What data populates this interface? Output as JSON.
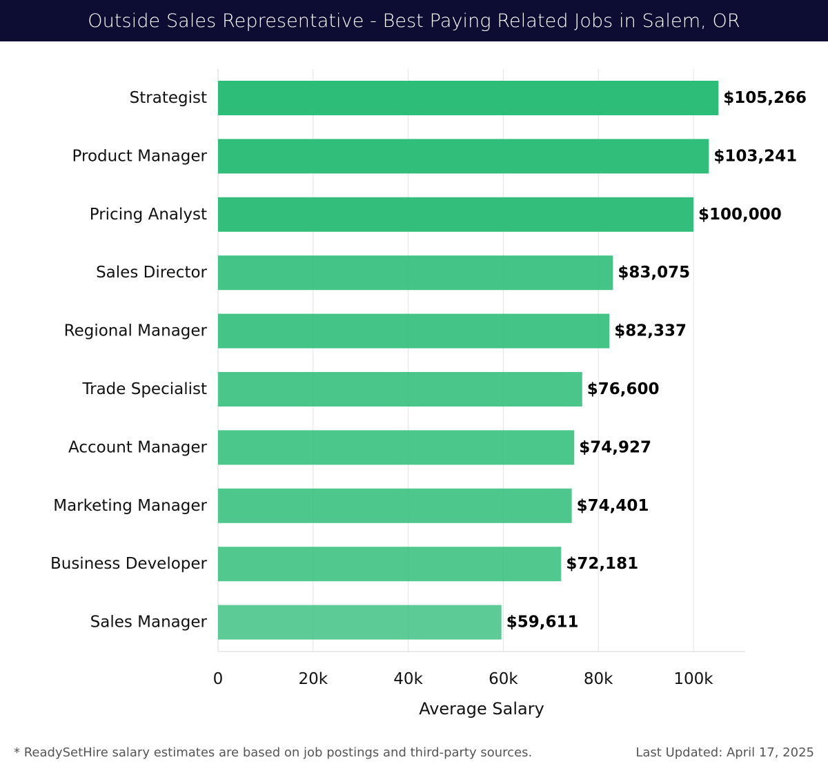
{
  "header": {
    "title": "Outside Sales Representative - Best Paying Related Jobs in Salem, OR"
  },
  "footer": {
    "note": "* ReadySetHire salary estimates are based on job postings and third-party sources.",
    "updated": "Last Updated: April 17, 2025"
  },
  "chart_data": {
    "type": "bar",
    "orientation": "horizontal",
    "categories": [
      "Strategist",
      "Product Manager",
      "Pricing Analyst",
      "Sales Director",
      "Regional Manager",
      "Trade Specialist",
      "Account Manager",
      "Marketing Manager",
      "Business Developer",
      "Sales Manager"
    ],
    "values": [
      105266,
      103241,
      100000,
      83075,
      82337,
      76600,
      74927,
      74401,
      72181,
      59611
    ],
    "value_labels": [
      "$105,266",
      "$103,241",
      "$100,000",
      "$83,075",
      "$82,337",
      "$76,600",
      "$74,927",
      "$74,401",
      "$72,181",
      "$59,611"
    ],
    "xlabel": "Average Salary",
    "ylabel": "",
    "xlim": [
      0,
      111000
    ],
    "xticks": [
      0,
      20000,
      40000,
      60000,
      80000,
      100000
    ],
    "xtick_labels": [
      "0",
      "20k",
      "40k",
      "60k",
      "80k",
      "100k"
    ],
    "grid": "vertical",
    "bar_color": "#2ebd78"
  }
}
